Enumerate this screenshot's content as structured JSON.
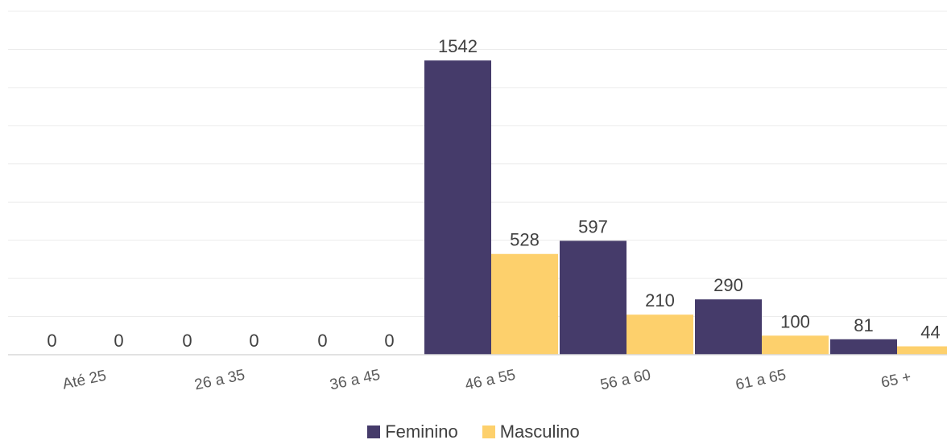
{
  "chart_data": {
    "type": "bar",
    "title": "",
    "xlabel": "",
    "ylabel": "",
    "categories": [
      "Até 25",
      "26 a 35",
      "36 a 45",
      "46 a 55",
      "56 a 60",
      "61 a 65",
      "65 +"
    ],
    "series": [
      {
        "name": "Feminino",
        "color": "#453b6a",
        "values": [
          0,
          0,
          0,
          1542,
          597,
          290,
          81
        ]
      },
      {
        "name": "Masculino",
        "color": "#fdd06c",
        "values": [
          0,
          0,
          0,
          528,
          210,
          100,
          44
        ]
      }
    ],
    "ylim": [
      0,
      1800
    ],
    "y_gridline_step": 200,
    "grid": true,
    "y_axis_labels_shown": false,
    "data_labels": true,
    "legend_position": "bottom"
  }
}
